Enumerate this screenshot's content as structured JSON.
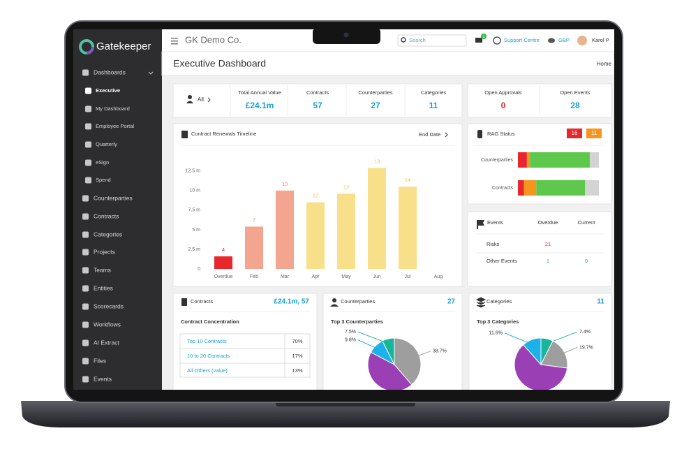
{
  "sidebar": {
    "brand": "Gatekeeper",
    "menu": [
      "Dashboards",
      "Executive",
      "My Dashboard",
      "Employee Portal",
      "Quarterly",
      "eSign",
      "Spend",
      "Counterparties",
      "Contracts",
      "Categories",
      "Projects",
      "Teams",
      "Entities",
      "Scorecards",
      "Workflows",
      "AI Extract",
      "Files",
      "Events"
    ]
  },
  "topbar": {
    "company": "GK Demo Co.",
    "search": "Search",
    "notifications": "1",
    "support": "Support Centre",
    "currency": "GBP",
    "user": "Karol P"
  },
  "page": {
    "title": "Executive Dashboard",
    "breadcrumb": "Home"
  },
  "stats": {
    "filter": "All",
    "items": [
      {
        "label": "Total Annual Value",
        "value": "£24.1m"
      },
      {
        "label": "Contracts",
        "value": "57"
      },
      {
        "label": "Counterparties",
        "value": "27"
      },
      {
        "label": "Categories",
        "value": "11"
      }
    ],
    "open": [
      {
        "label": "Open Approvals",
        "value": "0",
        "color": "#e8272c"
      },
      {
        "label": "Open Events",
        "value": "28",
        "color": "#1a9fd6"
      }
    ]
  },
  "renewals": {
    "title": "Contract Renewals Timeline",
    "sort": "End Date",
    "chart_data": {
      "type": "bar",
      "categories": [
        "Overdue",
        "Feb",
        "Mar",
        "Apr",
        "May",
        "Jun",
        "Jul",
        "Aug"
      ],
      "values": [
        1.6,
        5.4,
        10,
        8.5,
        9.6,
        12.9,
        10.5,
        0
      ],
      "counts": [
        4,
        7,
        10,
        12,
        12,
        13,
        14,
        null
      ],
      "colors": [
        "#e8272c",
        "#f4a58f",
        "#f4a58f",
        "#f8e08a",
        "#f8e08a",
        "#f8e08a",
        "#f8e08a",
        "#f8e08a"
      ],
      "count_colors": [
        "#e8272c",
        "#f08a6e",
        "#f08a6e",
        "#f0c850",
        "#f0c850",
        "#f0c850",
        "#f0c850",
        "#f0c850"
      ],
      "ylim": [
        0,
        14
      ],
      "yticks": [
        0,
        {
          "value": 2.5,
          "label": "2.5 m"
        },
        {
          "value": 5,
          "label": "5 m"
        },
        {
          "value": 7.5,
          "label": "7.5 m"
        },
        {
          "value": 10,
          "label": "10 m"
        },
        {
          "value": 12.5,
          "label": "12.5 m"
        }
      ],
      "grid": false
    }
  },
  "rag": {
    "title": "RAG Status",
    "badges": [
      {
        "value": 16,
        "color": "#e8272c"
      },
      {
        "value": 11,
        "color": "#f7941d"
      }
    ],
    "chart_data": {
      "type": "stacked-bar",
      "categories": [
        "Counterparties",
        "Contracts"
      ],
      "series": [
        {
          "color": "#e8272c",
          "values": [
            3,
            4
          ]
        },
        {
          "color": "#f7941d",
          "values": [
            1,
            8
          ]
        },
        {
          "color": "#5dc84b",
          "values": [
            20,
            32
          ]
        },
        {
          "color": "#d3d3d3",
          "values": [
            3,
            9
          ]
        }
      ]
    }
  },
  "events": {
    "title": "Events",
    "columns": [
      "Overdue",
      "Current"
    ],
    "rows": [
      {
        "label": "Risks",
        "overdue": "21",
        "current": null
      },
      {
        "label": "Other Events",
        "overdue": "1",
        "current": "0"
      }
    ]
  },
  "contracts_card": {
    "title": "Contracts",
    "summary": "£24.1m, 57",
    "subtitle": "Contract Concentration",
    "rows": [
      [
        "Top 10 Contracts",
        "70%"
      ],
      [
        "10 to 20 Contracts",
        "17%"
      ],
      [
        "All Others (value)",
        "13%"
      ]
    ]
  },
  "counterparties_card": {
    "title": "Counterparties",
    "count": "27",
    "subtitle": "Top 3 Counterparties",
    "chart_data": {
      "type": "pie",
      "values": [
        38.7,
        44,
        9.8,
        7.5
      ],
      "value_labels": [
        "38.7%",
        null,
        "9.8%",
        "7.5%"
      ],
      "colors": [
        "#9e9e9e",
        "#9b3fb5",
        "#1ab2e8",
        "#19b59b"
      ]
    }
  },
  "categories_card": {
    "title": "Categories",
    "count": "11",
    "subtitle": "Top 3 Categories",
    "chart_data": {
      "type": "pie",
      "values": [
        7.4,
        19.7,
        61.3,
        11.6
      ],
      "value_labels": [
        "7.4%",
        "19.7%",
        null,
        "11.6%"
      ],
      "colors": [
        "#19b59b",
        "#9e9e9e",
        "#9b3fb5",
        "#1ab2e8"
      ]
    }
  }
}
